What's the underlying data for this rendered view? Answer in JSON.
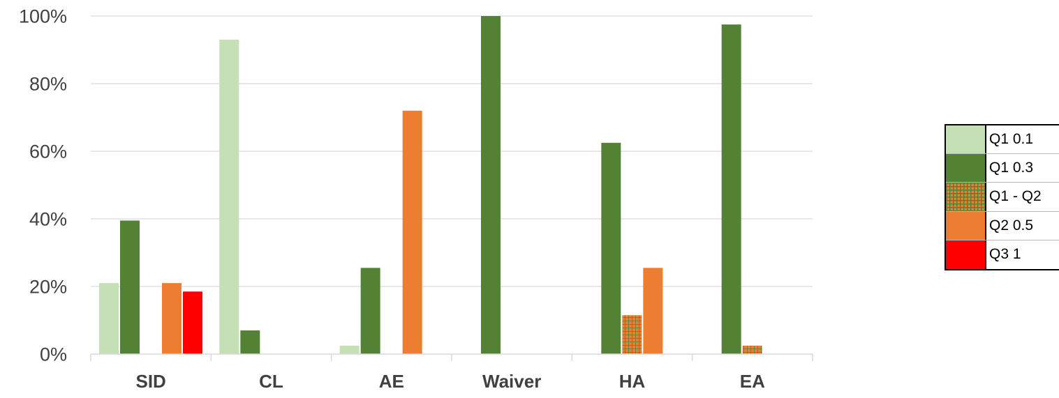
{
  "colors": {
    "q1_01": "#c5e0b4",
    "q1_03": "#548235",
    "q1_q2": "#ed7d31",
    "q1_q2_grid": "#548235",
    "q2_05": "#ed7d31",
    "q3_1": "#ff0000",
    "gridline": "#d9d9d9",
    "axis_text": "#404040"
  },
  "legend": [
    {
      "label": "Q1 0.1",
      "color": "#c5e0b4",
      "pattern": "solid"
    },
    {
      "label": "Q1 0.3",
      "color": "#548235",
      "pattern": "solid"
    },
    {
      "label": "Q1 - Q2",
      "color": "#ed7d31",
      "pattern": "grid"
    },
    {
      "label": "Q2 0.5",
      "color": "#ed7d31",
      "pattern": "solid"
    },
    {
      "label": "Q3 1",
      "color": "#ff0000",
      "pattern": "solid"
    }
  ],
  "chart_data": {
    "type": "bar",
    "categories": [
      "SID",
      "CL",
      "AE",
      "Waiver",
      "HA",
      "EA"
    ],
    "series": [
      {
        "name": "Q1 0.1",
        "values": [
          21,
          93,
          2.5,
          0,
          0,
          0
        ]
      },
      {
        "name": "Q1 0.3",
        "values": [
          39.5,
          7,
          25.5,
          100,
          62.5,
          97.5
        ]
      },
      {
        "name": "Q1 - Q2",
        "values": [
          0,
          0,
          0,
          0,
          11.5,
          2.5
        ]
      },
      {
        "name": "Q2 0.5",
        "values": [
          21,
          0,
          72,
          0,
          25.5,
          0
        ]
      },
      {
        "name": "Q3 1",
        "values": [
          18.5,
          0,
          0,
          0,
          0,
          0
        ]
      }
    ],
    "yticks": [
      "0%",
      "20%",
      "40%",
      "60%",
      "80%",
      "100%"
    ],
    "ylim": [
      0,
      100
    ],
    "title": "",
    "xlabel": "",
    "ylabel": "",
    "grid": true,
    "legend_position": "right"
  }
}
